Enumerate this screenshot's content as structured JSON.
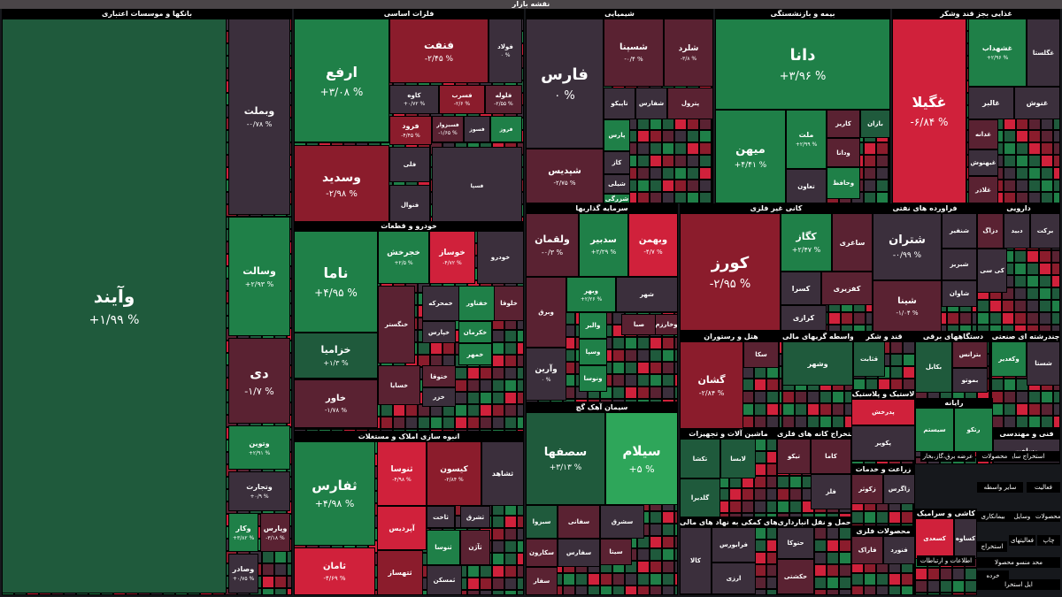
{
  "title": "نقشه بازار",
  "colors": {
    "strong_up": "#2ea65a",
    "up": "#1f8048",
    "mild_up": "#1f5a3c",
    "neutral": "#3b2f3c",
    "mild_down": "#5a2232",
    "down": "#8b1c2c",
    "strong_down": "#d0213b"
  },
  "chart_data": {
    "type": "treemap",
    "sectors": [
      {
        "name": "بانکها و موسسات اعتباری",
        "stocks": [
          {
            "symbol": "وآیند",
            "change": "+۱/۹۹ %",
            "tone": "mild_up"
          },
          {
            "symbol": "وبملت",
            "change": "-۰/۷۸ %",
            "tone": "neutral"
          },
          {
            "symbol": "وسالت",
            "change": "+۲/۹۳ %",
            "tone": "up"
          },
          {
            "symbol": "دی",
            "change": "-۱/۷ %",
            "tone": "mild_down"
          },
          {
            "symbol": "وتوین",
            "change": "+۲/۹۱ %",
            "tone": "up"
          },
          {
            "symbol": "وتجارت",
            "change": "+۰/۹ %",
            "tone": "neutral"
          },
          {
            "symbol": "وکار",
            "change": "+۳/۸۲ %",
            "tone": "up"
          },
          {
            "symbol": "وپارس",
            "change": "-۳/۱۸ %",
            "tone": "mild_down"
          },
          {
            "symbol": "وصادر",
            "change": "+۰/۷۵ %",
            "tone": "neutral"
          }
        ]
      },
      {
        "name": "فلزات اساسی",
        "stocks": [
          {
            "symbol": "ارفع",
            "change": "+۳/۰۸ %",
            "tone": "up"
          },
          {
            "symbol": "فنفت",
            "change": "-۲/۴۵ %",
            "tone": "down"
          },
          {
            "symbol": "فولاد",
            "change": "۰ %",
            "tone": "neutral"
          },
          {
            "symbol": "وسدید",
            "change": "-۲/۹۸ %",
            "tone": "down"
          },
          {
            "symbol": "کاوه",
            "change": "+۰/۷۲ %",
            "tone": "neutral"
          },
          {
            "symbol": "فسرب",
            "change": "-۲/۶ %",
            "tone": "down"
          },
          {
            "symbol": "فلوله",
            "change": "-۲/۵۵ %",
            "tone": "mild_down"
          },
          {
            "symbol": "فرود",
            "change": "-۴/۴۵ %",
            "tone": "down"
          },
          {
            "symbol": "فسبزوار",
            "change": "-۱/۶۵ %",
            "tone": "mild_down"
          },
          {
            "symbol": "فسوز",
            "change": "",
            "tone": "neutral"
          },
          {
            "symbol": "فروز",
            "change": "",
            "tone": "up"
          },
          {
            "symbol": "فلی",
            "change": "",
            "tone": "neutral"
          },
          {
            "symbol": "فنوال",
            "change": "",
            "tone": "neutral"
          },
          {
            "symbol": "فسپا",
            "change": "",
            "tone": "neutral"
          }
        ]
      },
      {
        "name": "شیمیایی",
        "stocks": [
          {
            "symbol": "فارس",
            "change": "۰ %",
            "tone": "neutral"
          },
          {
            "symbol": "شسپنا",
            "change": "-۰/۴ %",
            "tone": "mild_down"
          },
          {
            "symbol": "شلرد",
            "change": "-۳/۸ %",
            "tone": "mild_down"
          },
          {
            "symbol": "شپدیس",
            "change": "-۲/۷۵ %",
            "tone": "mild_down"
          },
          {
            "symbol": "تاپیکو",
            "change": "",
            "tone": "neutral"
          },
          {
            "symbol": "شفارس",
            "change": "",
            "tone": "neutral"
          },
          {
            "symbol": "پترول",
            "change": "",
            "tone": "mild_down"
          },
          {
            "symbol": "پارس",
            "change": "",
            "tone": "up"
          },
          {
            "symbol": "کاز",
            "change": "",
            "tone": "neutral"
          },
          {
            "symbol": "شیلی",
            "change": "",
            "tone": "neutral"
          },
          {
            "symbol": "شزرگی",
            "change": "",
            "tone": "up"
          }
        ]
      },
      {
        "name": "بیمه و بازنشستگی",
        "stocks": [
          {
            "symbol": "دانا",
            "change": "+۳/۹۶ %",
            "tone": "up"
          },
          {
            "symbol": "میهن",
            "change": "+۴/۴۱ %",
            "tone": "up"
          },
          {
            "symbol": "ملت",
            "change": "+۲/۹۹ %",
            "tone": "up"
          },
          {
            "symbol": "کاریز",
            "change": "",
            "tone": "mild_down"
          },
          {
            "symbol": "بازان",
            "change": "",
            "tone": "mild_up"
          },
          {
            "symbol": "ودانا",
            "change": "",
            "tone": "mild_down"
          },
          {
            "symbol": "وحافظ",
            "change": "",
            "tone": "up"
          },
          {
            "symbol": "تعاون",
            "change": "",
            "tone": "neutral"
          }
        ]
      },
      {
        "name": "غذایی بجز قند وشکر",
        "stocks": [
          {
            "symbol": "غگیلا",
            "change": "-۶/۸۴ %",
            "tone": "strong_down"
          },
          {
            "symbol": "غشهداب",
            "change": "+۲/۹۶ %",
            "tone": "up"
          },
          {
            "symbol": "غگلستا",
            "change": "",
            "tone": "neutral"
          },
          {
            "symbol": "غالبر",
            "change": "",
            "tone": "neutral"
          },
          {
            "symbol": "غنوش",
            "change": "",
            "tone": "neutral"
          },
          {
            "symbol": "غدانه",
            "change": "",
            "tone": "mild_down"
          },
          {
            "symbol": "غبهنوش",
            "change": "",
            "tone": "neutral"
          },
          {
            "symbol": "غلاذر",
            "change": "",
            "tone": "mild_down"
          }
        ]
      },
      {
        "name": "خودرو و قطعات",
        "stocks": [
          {
            "symbol": "ناما",
            "change": "+۴/۹۵ %",
            "tone": "up"
          },
          {
            "symbol": "خزامیا",
            "change": "+۱/۳ %",
            "tone": "mild_up"
          },
          {
            "symbol": "خاور",
            "change": "-۱/۷۸ %",
            "tone": "mild_down"
          },
          {
            "symbol": "خجرخش",
            "change": "+۲/۵ %",
            "tone": "up"
          },
          {
            "symbol": "خوساز",
            "change": "-۴/۷۲ %",
            "tone": "strong_down"
          },
          {
            "symbol": "خودرو",
            "change": "",
            "tone": "neutral"
          },
          {
            "symbol": "خنگستر",
            "change": "",
            "tone": "mild_down"
          },
          {
            "symbol": "خمحرکه",
            "change": "",
            "tone": "neutral"
          },
          {
            "symbol": "خفناور",
            "change": "",
            "tone": "up"
          },
          {
            "symbol": "خلوقا",
            "change": "",
            "tone": "mild_down"
          },
          {
            "symbol": "خپارس",
            "change": "",
            "tone": "neutral"
          },
          {
            "symbol": "خکرمان",
            "change": "",
            "tone": "up"
          },
          {
            "symbol": "خمهر",
            "change": "",
            "tone": "up"
          },
          {
            "symbol": "خسایا",
            "change": "",
            "tone": "mild_down"
          },
          {
            "symbol": "ختوقا",
            "change": "",
            "tone": "mild_down"
          },
          {
            "symbol": "خزر",
            "change": "",
            "tone": "neutral"
          }
        ]
      },
      {
        "name": "انبوه سازی املاک و مستغلات",
        "stocks": [
          {
            "symbol": "ثفارس",
            "change": "+۴/۹۸ %",
            "tone": "up"
          },
          {
            "symbol": "ثنوسا",
            "change": "-۴/۹۸ %",
            "tone": "strong_down"
          },
          {
            "symbol": "کیسون",
            "change": "-۲/۸۴ %",
            "tone": "down"
          },
          {
            "symbol": "ثشاهد",
            "change": "",
            "tone": "neutral"
          },
          {
            "symbol": "آپردیس",
            "change": "",
            "tone": "strong_down"
          },
          {
            "symbol": "ثاخت",
            "change": "",
            "tone": "neutral"
          },
          {
            "symbol": "ثامان",
            "change": "-۴/۶۹ %",
            "tone": "strong_down"
          },
          {
            "symbol": "ثتهساز",
            "change": "",
            "tone": "down"
          },
          {
            "symbol": "ثنوسا",
            "change": "",
            "tone": "up"
          },
          {
            "symbol": "ثمسکن",
            "change": "",
            "tone": "neutral"
          },
          {
            "symbol": "ثشرق",
            "change": "",
            "tone": "neutral"
          },
          {
            "symbol": "ثآژن",
            "change": "",
            "tone": "mild_down"
          }
        ]
      },
      {
        "name": "سرمایه گذاریها",
        "stocks": [
          {
            "symbol": "ولقمان",
            "change": "-۰/۳ %",
            "tone": "mild_down"
          },
          {
            "symbol": "سدبیر",
            "change": "+۲/۲۹ %",
            "tone": "up"
          },
          {
            "symbol": "وبهمن",
            "change": "-۴/۷ %",
            "tone": "strong_down"
          },
          {
            "symbol": "وبرق",
            "change": "",
            "tone": "mild_down"
          },
          {
            "symbol": "وبهر",
            "change": "+۲/۲۶ %",
            "tone": "up"
          },
          {
            "symbol": "شهر",
            "change": "",
            "tone": "neutral"
          },
          {
            "symbol": "والبر",
            "change": "",
            "tone": "up"
          },
          {
            "symbol": "صبا",
            "change": "",
            "tone": "mild_down"
          },
          {
            "symbol": "وخارزم",
            "change": "",
            "tone": "mild_down"
          },
          {
            "symbol": "وآرین",
            "change": "۰ %",
            "tone": "neutral"
          },
          {
            "symbol": "وسپا",
            "change": "",
            "tone": "up"
          },
          {
            "symbol": "ونوسا",
            "change": "",
            "tone": "up"
          }
        ]
      },
      {
        "name": "کانی غیر فلزی",
        "stocks": [
          {
            "symbol": "کورز",
            "change": "-۲/۹۵ %",
            "tone": "down"
          },
          {
            "symbol": "کگاز",
            "change": "+۲/۴۷ %",
            "tone": "up"
          },
          {
            "symbol": "ساغری",
            "change": "",
            "tone": "mild_down"
          },
          {
            "symbol": "کسرا",
            "change": "",
            "tone": "neutral"
          },
          {
            "symbol": "کفزیری",
            "change": "",
            "tone": "mild_down"
          },
          {
            "symbol": "کرازی",
            "change": "",
            "tone": "neutral"
          }
        ]
      },
      {
        "name": "فراورده های نفتی",
        "stocks": [
          {
            "symbol": "شتران",
            "change": "-۰/۹۹ %",
            "tone": "neutral"
          },
          {
            "symbol": "شنفیر",
            "change": "",
            "tone": "neutral"
          },
          {
            "symbol": "شینا",
            "change": "-۱/۰۴ %",
            "tone": "mild_down"
          },
          {
            "symbol": "شبریز",
            "change": "",
            "tone": "neutral"
          },
          {
            "symbol": "شاوان",
            "change": "",
            "tone": "neutral"
          }
        ]
      },
      {
        "name": "دارویی",
        "stocks": [
          {
            "symbol": "دزاگ",
            "change": "",
            "tone": "mild_down"
          },
          {
            "symbol": "دبید",
            "change": "",
            "tone": "neutral"
          },
          {
            "symbol": "برکت",
            "change": "",
            "tone": "neutral"
          },
          {
            "symbol": "کی سی",
            "change": "",
            "tone": "neutral"
          }
        ]
      },
      {
        "name": "سیمان آهک گچ",
        "stocks": [
          {
            "symbol": "سصفها",
            "change": "+۳/۱۳ %",
            "tone": "mild_up"
          },
          {
            "symbol": "سیلام",
            "change": "+۵ %",
            "tone": "strong_up"
          },
          {
            "symbol": "سبزوا",
            "change": "",
            "tone": "mild_up"
          },
          {
            "symbol": "سفانی",
            "change": "",
            "tone": "mild_down"
          },
          {
            "symbol": "سشرق",
            "change": "",
            "tone": "neutral"
          },
          {
            "symbol": "سکارون",
            "change": "",
            "tone": "mild_down"
          },
          {
            "symbol": "سفارس",
            "change": "",
            "tone": "neutral"
          },
          {
            "symbol": "سیتا",
            "change": "",
            "tone": "mild_down"
          },
          {
            "symbol": "سفار",
            "change": "",
            "tone": "mild_down"
          }
        ]
      },
      {
        "name": "هتل و رستوران",
        "stocks": [
          {
            "symbol": "گشان",
            "change": "-۲/۸۴ %",
            "tone": "down"
          },
          {
            "symbol": "سکا",
            "change": "",
            "tone": "mild_down"
          }
        ]
      },
      {
        "name": "واسطه گریهای مالی",
        "stocks": [
          {
            "symbol": "وشهر",
            "change": "",
            "tone": "mild_up"
          }
        ]
      },
      {
        "name": "قند و شکر",
        "stocks": [
          {
            "symbol": "قثابت",
            "change": "",
            "tone": "mild_up"
          }
        ]
      },
      {
        "name": "دستگاههای برقی",
        "stocks": [
          {
            "symbol": "بکابل",
            "change": "",
            "tone": "mild_up"
          },
          {
            "symbol": "بترانس",
            "change": "",
            "tone": "mild_down"
          },
          {
            "symbol": "بموتو",
            "change": "",
            "tone": "neutral"
          }
        ]
      },
      {
        "name": "چندرشته ای صنعتی",
        "stocks": [
          {
            "symbol": "وکغدیر",
            "change": "",
            "tone": "up"
          },
          {
            "symbol": "شستا",
            "change": "",
            "tone": "neutral"
          }
        ]
      },
      {
        "name": "ماشین آلات و تجهیزات",
        "stocks": [
          {
            "symbol": "تکشا",
            "change": "",
            "tone": "mild_up"
          },
          {
            "symbol": "لابسا",
            "change": "",
            "tone": "mild_up"
          },
          {
            "symbol": "گلدیرا",
            "change": "",
            "tone": "mild_up"
          }
        ]
      },
      {
        "name": "استخراج کانه های فلزی",
        "stocks": [
          {
            "symbol": "تیکو",
            "change": "",
            "tone": "mild_down"
          },
          {
            "symbol": "کاما",
            "change": "",
            "tone": "mild_down"
          },
          {
            "symbol": "فلز",
            "change": "",
            "tone": "neutral"
          }
        ]
      },
      {
        "name": "لاستیک و پلاستیک",
        "stocks": [
          {
            "symbol": "پدرخش",
            "change": "",
            "tone": "strong_down"
          },
          {
            "symbol": "پکویر",
            "change": "",
            "tone": "neutral"
          }
        ]
      },
      {
        "name": "رایانه",
        "stocks": [
          {
            "symbol": "سیستم",
            "change": "",
            "tone": "up"
          },
          {
            "symbol": "رتکو",
            "change": "",
            "tone": "up"
          }
        ]
      },
      {
        "name": "حمل و نقل انبارداری",
        "stocks": [
          {
            "symbol": "حتوکا",
            "change": "",
            "tone": "neutral"
          },
          {
            "symbol": "حکشتی",
            "change": "",
            "tone": "mild_down"
          }
        ]
      },
      {
        "name": "محصولات فلزی",
        "stocks": [
          {
            "symbol": "فاراک",
            "change": "",
            "tone": "mild_down"
          },
          {
            "symbol": "فنورد",
            "change": "",
            "tone": "neutral"
          }
        ]
      },
      {
        "name": "کاشی و سرامیک",
        "stocks": [
          {
            "symbol": "کسعدی",
            "change": "",
            "tone": "strong_down"
          },
          {
            "symbol": "کساوه",
            "change": "",
            "tone": "neutral"
          }
        ]
      },
      {
        "name": "فعالیت های کمکی به نهاد های مالی",
        "stocks": [
          {
            "symbol": "کالا",
            "change": "",
            "tone": "neutral"
          },
          {
            "symbol": "فرابورس",
            "change": "",
            "tone": "neutral"
          },
          {
            "symbol": "ارزی",
            "change": "",
            "tone": "neutral"
          }
        ]
      },
      {
        "name": "زراعت و خدمات",
        "stocks": [
          {
            "symbol": "زکوثر",
            "change": "",
            "tone": "mild_down"
          },
          {
            "symbol": "زاگرس",
            "change": "",
            "tone": "neutral"
          }
        ]
      },
      {
        "name": "فنی و مهندسی",
        "stocks": [
          {
            "symbol": "وساخت",
            "change": "",
            "tone": "neutral"
          }
        ]
      }
    ],
    "extra_labels": [
      "استخراج سایر",
      "محصولات",
      "عرضه برق،گاز،بخار",
      "سایر واسطه",
      "فعالیت",
      "بیمانکاری",
      "وسایل",
      "محصولات",
      "چاپ",
      "فعالیتهای",
      "استخراج",
      "اطلاعات و ارتباطات",
      "محد منسو محصولا",
      "خرده",
      "ایل استخرا"
    ]
  }
}
